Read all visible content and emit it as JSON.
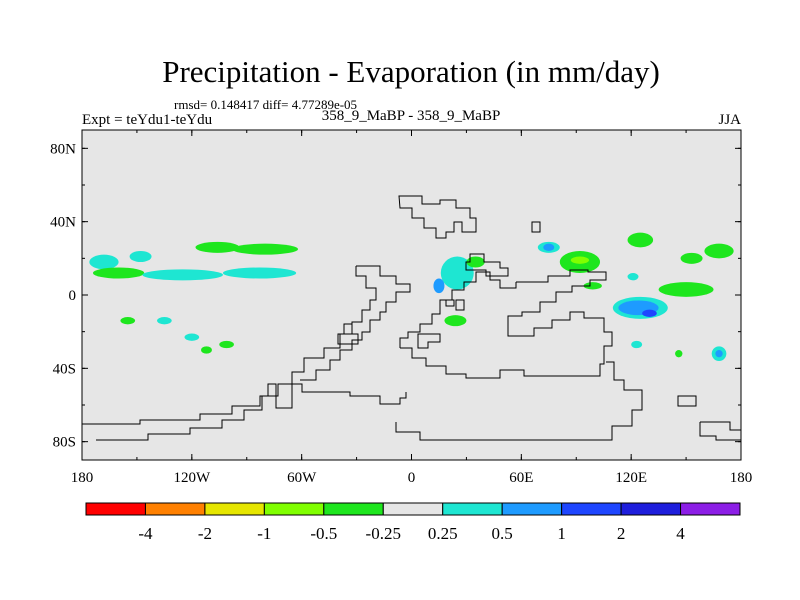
{
  "chart_data": {
    "type": "heatmap",
    "title": "Precipitation - Evaporation (in mm/day)",
    "stats_line": "rmsd= 0.148417 diff= 4.77289e-05",
    "left_label": "Expt = teYdu1-teYdu",
    "center_label": "358_9_MaBP - 358_9_MaBP",
    "right_label": "JJA",
    "x_ticks": [
      {
        "value": -180,
        "label": "180"
      },
      {
        "value": -120,
        "label": "120W"
      },
      {
        "value": -60,
        "label": "60W"
      },
      {
        "value": 0,
        "label": "0"
      },
      {
        "value": 60,
        "label": "60E"
      },
      {
        "value": 120,
        "label": "120E"
      },
      {
        "value": 180,
        "label": "180"
      }
    ],
    "y_ticks": [
      {
        "value": 80,
        "label": "80N"
      },
      {
        "value": 40,
        "label": "40N"
      },
      {
        "value": 0,
        "label": "0"
      },
      {
        "value": -40,
        "label": "40S"
      },
      {
        "value": -80,
        "label": "80S"
      }
    ],
    "xlim": [
      -180,
      180
    ],
    "ylim": [
      -90,
      90
    ],
    "colorbar": {
      "colors": [
        "#ff0000",
        "#ff8000",
        "#e6e600",
        "#80ff00",
        "#1ee61e",
        "#e6e6e6",
        "#1ee6d2",
        "#1e9bff",
        "#1e46ff",
        "#1e1edc",
        "#8c1ee6"
      ],
      "labels": [
        "-4",
        "-2",
        "-1",
        "-0.5",
        "-0.25",
        "0.25",
        "0.5",
        "1",
        "2",
        "4"
      ]
    },
    "anomaly_patches": [
      {
        "lon": -168,
        "lat": 18,
        "rlon": 8,
        "rlat": 4,
        "level": "0.25"
      },
      {
        "lon": -148,
        "lat": 21,
        "rlon": 6,
        "rlat": 3,
        "level": "0.25"
      },
      {
        "lon": -160,
        "lat": 12,
        "rlon": 14,
        "rlat": 3,
        "level": "-0.25"
      },
      {
        "lon": -125,
        "lat": 11,
        "rlon": 22,
        "rlat": 3,
        "level": "0.25"
      },
      {
        "lon": -106,
        "lat": 26,
        "rlon": 12,
        "rlat": 3,
        "level": "-0.25"
      },
      {
        "lon": -80,
        "lat": 25,
        "rlon": 18,
        "rlat": 3,
        "level": "-0.25"
      },
      {
        "lon": -83,
        "lat": 12,
        "rlon": 20,
        "rlat": 3,
        "level": "0.25"
      },
      {
        "lon": -155,
        "lat": -14,
        "rlon": 4,
        "rlat": 2,
        "level": "-0.25"
      },
      {
        "lon": -135,
        "lat": -14,
        "rlon": 4,
        "rlat": 2,
        "level": "0.25"
      },
      {
        "lon": -120,
        "lat": -23,
        "rlon": 4,
        "rlat": 2,
        "level": "0.25"
      },
      {
        "lon": -112,
        "lat": -30,
        "rlon": 3,
        "rlat": 2,
        "level": "-0.25"
      },
      {
        "lon": -101,
        "lat": -27,
        "rlon": 4,
        "rlat": 2,
        "level": "-0.25"
      },
      {
        "lon": 25,
        "lat": 12,
        "rlon": 9,
        "rlat": 9,
        "level": "0.25"
      },
      {
        "lon": 15,
        "lat": 5,
        "rlon": 3,
        "rlat": 4,
        "level": "0.5"
      },
      {
        "lon": 35,
        "lat": 18,
        "rlon": 5,
        "rlat": 3,
        "level": "-0.25"
      },
      {
        "lon": 24,
        "lat": -14,
        "rlon": 6,
        "rlat": 3,
        "level": "-0.25"
      },
      {
        "lon": 75,
        "lat": 26,
        "rlon": 6,
        "rlat": 3,
        "level": "0.25"
      },
      {
        "lon": 75,
        "lat": 26,
        "rlon": 3,
        "rlat": 2,
        "level": "0.5"
      },
      {
        "lon": 92,
        "lat": 18,
        "rlon": 11,
        "rlat": 6,
        "level": "-0.25"
      },
      {
        "lon": 92,
        "lat": 19,
        "rlon": 5,
        "rlat": 2,
        "level": "-0.5"
      },
      {
        "lon": 125,
        "lat": 30,
        "rlon": 7,
        "rlat": 4,
        "level": "-0.25"
      },
      {
        "lon": 153,
        "lat": 20,
        "rlon": 6,
        "rlat": 3,
        "level": "-0.25"
      },
      {
        "lon": 168,
        "lat": 24,
        "rlon": 8,
        "rlat": 4,
        "level": "-0.25"
      },
      {
        "lon": 150,
        "lat": 3,
        "rlon": 15,
        "rlat": 4,
        "level": "-0.25"
      },
      {
        "lon": 121,
        "lat": 10,
        "rlon": 3,
        "rlat": 2,
        "level": "0.25"
      },
      {
        "lon": 125,
        "lat": -7,
        "rlon": 15,
        "rlat": 6,
        "level": "0.25"
      },
      {
        "lon": 124,
        "lat": -7,
        "rlon": 11,
        "rlat": 4,
        "level": "0.5"
      },
      {
        "lon": 130,
        "lat": -10,
        "rlon": 4,
        "rlat": 2,
        "level": "1"
      },
      {
        "lon": 99,
        "lat": 5,
        "rlon": 5,
        "rlat": 2,
        "level": "-0.25"
      },
      {
        "lon": 168,
        "lat": -32,
        "rlon": 4,
        "rlat": 4,
        "level": "0.25"
      },
      {
        "lon": 168,
        "lat": -32,
        "rlon": 2,
        "rlat": 2,
        "level": "0.5"
      },
      {
        "lon": 123,
        "lat": -27,
        "rlon": 3,
        "rlat": 2,
        "level": "0.25"
      },
      {
        "lon": 146,
        "lat": -32,
        "rlon": 2,
        "rlat": 2,
        "level": "-0.25"
      }
    ]
  }
}
